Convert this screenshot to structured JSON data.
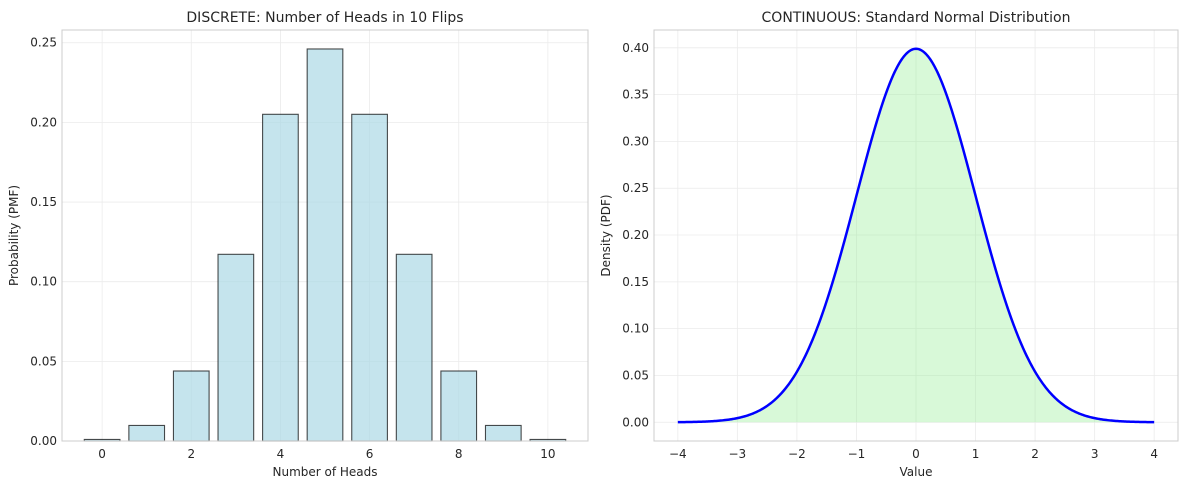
{
  "chart_data": [
    {
      "type": "bar",
      "title": "DISCRETE: Number of Heads in 10 Flips",
      "xlabel": "Number of Heads",
      "ylabel": "Probability (PMF)",
      "x": [
        0,
        1,
        2,
        3,
        4,
        5,
        6,
        7,
        8,
        9,
        10
      ],
      "values": [
        0.000977,
        0.009766,
        0.043945,
        0.117188,
        0.205078,
        0.246094,
        0.205078,
        0.117188,
        0.043945,
        0.009766,
        0.000977
      ],
      "xlim": [
        -0.9,
        10.9
      ],
      "ylim": [
        0,
        0.258
      ],
      "xticks": [
        0,
        2,
        4,
        6,
        8,
        10
      ],
      "yticks": [
        0.0,
        0.05,
        0.1,
        0.15,
        0.2,
        0.25
      ],
      "ytick_labels": [
        "0.00",
        "0.05",
        "0.10",
        "0.15",
        "0.20",
        "0.25"
      ],
      "bar_color": "#add8e6",
      "edge_color": "#000000",
      "grid": true
    },
    {
      "type": "area",
      "title": "CONTINUOUS: Standard Normal Distribution",
      "xlabel": "Value",
      "ylabel": "Density (PDF)",
      "function": "standard normal pdf",
      "x_range": [
        -4,
        4
      ],
      "peak": 0.3989,
      "xlim": [
        -4.4,
        4.4
      ],
      "ylim": [
        -0.02,
        0.419
      ],
      "xticks": [
        -4,
        -3,
        -2,
        -1,
        0,
        1,
        2,
        3,
        4
      ],
      "xtick_labels": [
        "−4",
        "−3",
        "−2",
        "−1",
        "0",
        "1",
        "2",
        "3",
        "4"
      ],
      "yticks": [
        0.0,
        0.05,
        0.1,
        0.15,
        0.2,
        0.25,
        0.3,
        0.35,
        0.4
      ],
      "ytick_labels": [
        "0.00",
        "0.05",
        "0.10",
        "0.15",
        "0.20",
        "0.25",
        "0.30",
        "0.35",
        "0.40"
      ],
      "line_color": "#0000ff",
      "fill_color": "#90ee90",
      "grid": true
    }
  ]
}
